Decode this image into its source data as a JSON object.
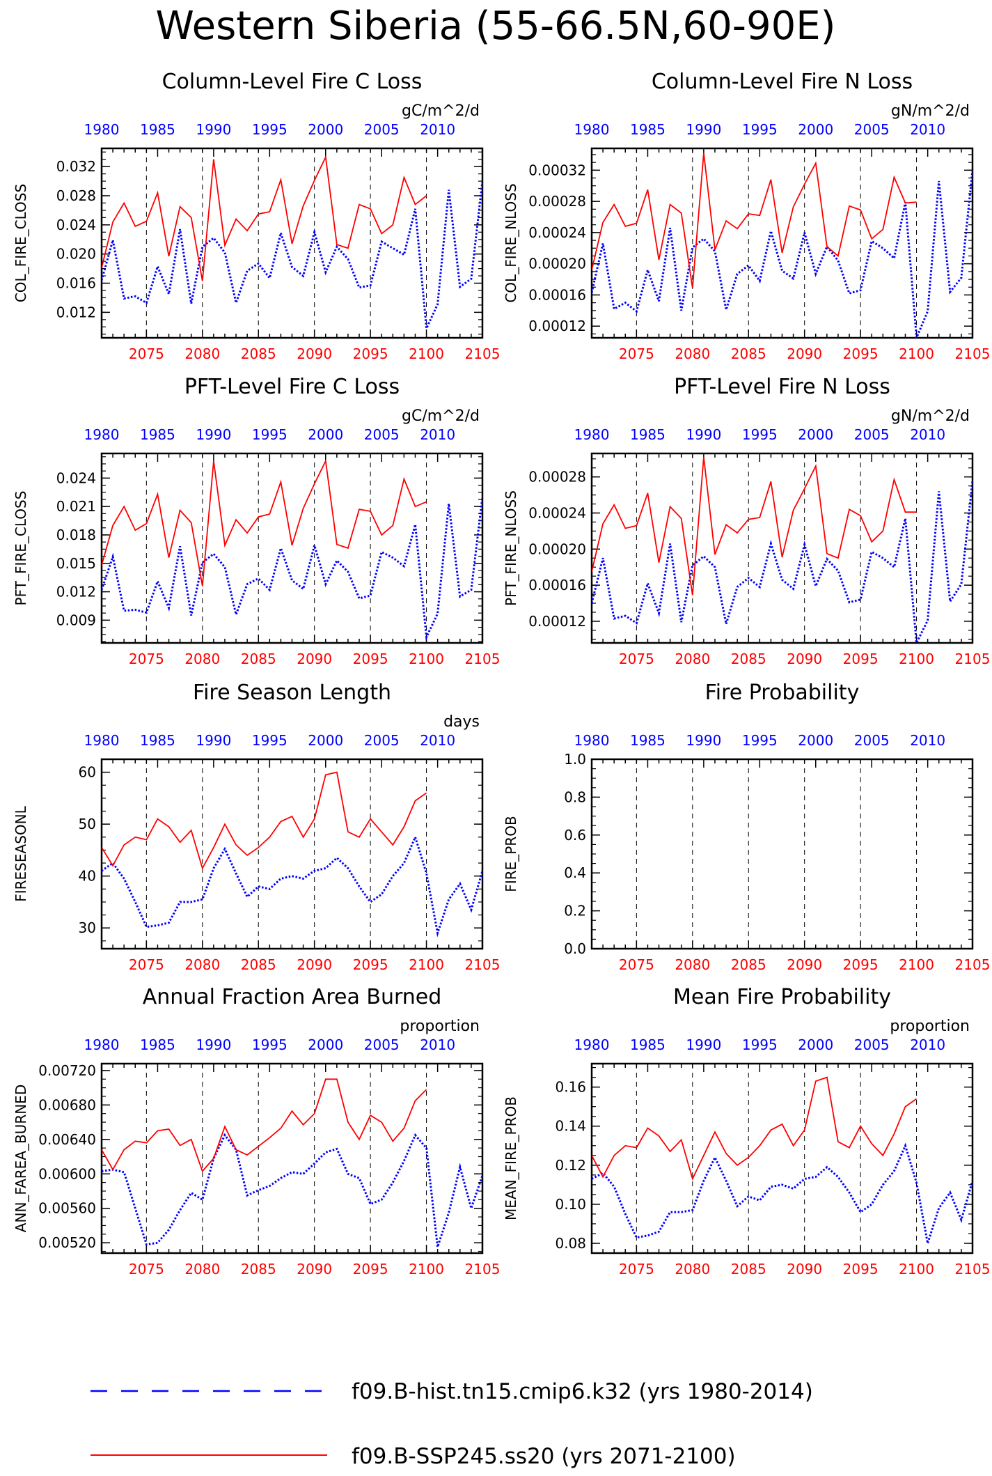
{
  "page_title": "Western Siberia (55-66.5N,60-90E)",
  "colors": {
    "hist": "#0000ff",
    "future": "#ff0000",
    "axis": "#000000"
  },
  "top_axis_labels": [
    "1980",
    "1985",
    "1990",
    "1995",
    "2000",
    "2005",
    "2010"
  ],
  "bottom_axis_labels": [
    "2075",
    "2080",
    "2085",
    "2090",
    "2095",
    "2100",
    "2105"
  ],
  "legend": [
    {
      "style": "dashed",
      "color": "#0000ff",
      "label": "f09.B-hist.tn15.cmip6.k32 (yrs 1980-2014)"
    },
    {
      "style": "solid",
      "color": "#ff0000",
      "label": "f09.B-SSP245.ss20 (yrs 2071-2100)"
    }
  ],
  "chart_data": [
    {
      "type": "line",
      "title": "Column-Level Fire C Loss",
      "units": "gC/m^2/d",
      "ylabel": "COL_FIRE_CLOSS",
      "ylim": [
        0.0085,
        0.0345
      ],
      "yticks": [
        0.012,
        0.016,
        0.02,
        0.024,
        0.028,
        0.032
      ],
      "ytick_labels": [
        "0.012",
        "0.016",
        "0.020",
        "0.024",
        "0.028",
        "0.032"
      ],
      "series": [
        {
          "values": [
            0.0164,
            0.0219,
            0.0139,
            0.0142,
            0.0133,
            0.0183,
            0.0145,
            0.0234,
            0.0132,
            0.021,
            0.0222,
            0.0202,
            0.0133,
            0.0177,
            0.0187,
            0.0167,
            0.0229,
            0.0182,
            0.017,
            0.023,
            0.0175,
            0.021,
            0.0193,
            0.0154,
            0.0157,
            0.0217,
            0.0208,
            0.0199,
            0.0262,
            0.0098,
            0.0131,
            0.0288,
            0.0155,
            0.0166,
            0.03
          ]
        },
        {
          "values": [
            0.0181,
            0.0244,
            0.027,
            0.0238,
            0.0245,
            0.0284,
            0.0197,
            0.0265,
            0.025,
            0.0163,
            0.033,
            0.0212,
            0.0248,
            0.0232,
            0.0255,
            0.0258,
            0.0302,
            0.0214,
            0.0266,
            0.0301,
            0.0333,
            0.0213,
            0.0208,
            0.0268,
            0.0262,
            0.0228,
            0.024,
            0.0305,
            0.0268,
            0.028
          ]
        }
      ]
    },
    {
      "type": "line",
      "title": "Column-Level Fire N Loss",
      "units": "gN/m^2/d",
      "ylabel": "COL_FIRE_NLOSS",
      "ylim": [
        0.000105,
        0.000348
      ],
      "yticks": [
        0.00012,
        0.00016,
        0.0002,
        0.00024,
        0.00028,
        0.00032
      ],
      "ytick_labels": [
        "0.00012",
        "0.00016",
        "0.00020",
        "0.00024",
        "0.00028",
        "0.00032"
      ],
      "series": [
        {
          "values": [
            0.000163,
            0.000226,
            0.000142,
            0.00015,
            0.000139,
            0.000192,
            0.000152,
            0.000246,
            0.00014,
            0.000221,
            0.000232,
            0.000216,
            0.000141,
            0.000187,
            0.000198,
            0.000178,
            0.000242,
            0.000191,
            0.000181,
            0.00024,
            0.000187,
            0.000222,
            0.000204,
            0.000162,
            0.000166,
            0.000229,
            0.00022,
            0.000207,
            0.000279,
            0.000105,
            0.000139,
            0.000306,
            0.000164,
            0.000182,
            0.00032
          ]
        },
        {
          "values": [
            0.000192,
            0.000253,
            0.000276,
            0.000248,
            0.000252,
            0.000295,
            0.000205,
            0.000276,
            0.000265,
            0.000169,
            0.000342,
            0.000218,
            0.000255,
            0.000245,
            0.000264,
            0.000262,
            0.000308,
            0.000214,
            0.000273,
            0.000302,
            0.000329,
            0.000222,
            0.00021,
            0.000274,
            0.000269,
            0.000232,
            0.000244,
            0.000311,
            0.000278,
            0.000279
          ]
        }
      ]
    },
    {
      "type": "line",
      "title": "PFT-Level Fire C Loss",
      "units": "gC/m^2/d",
      "ylabel": "PFT_FIRE_CLOSS",
      "ylim": [
        0.0066,
        0.0266
      ],
      "yticks": [
        0.009,
        0.012,
        0.015,
        0.018,
        0.021,
        0.024
      ],
      "ytick_labels": [
        "0.009",
        "0.012",
        "0.015",
        "0.018",
        "0.021",
        "0.024"
      ],
      "series": [
        {
          "values": [
            0.0122,
            0.0157,
            0.01,
            0.0101,
            0.0098,
            0.0131,
            0.0103,
            0.0168,
            0.0095,
            0.0151,
            0.016,
            0.0146,
            0.0096,
            0.0128,
            0.0134,
            0.0122,
            0.0166,
            0.0132,
            0.0123,
            0.0169,
            0.0128,
            0.0153,
            0.0141,
            0.0113,
            0.0116,
            0.0162,
            0.0156,
            0.0147,
            0.0191,
            0.0072,
            0.0097,
            0.0213,
            0.0115,
            0.0122,
            0.022
          ]
        },
        {
          "values": [
            0.0148,
            0.019,
            0.021,
            0.0185,
            0.0192,
            0.0223,
            0.0156,
            0.0206,
            0.0193,
            0.0126,
            0.0258,
            0.0169,
            0.0196,
            0.0182,
            0.0199,
            0.0202,
            0.0236,
            0.0169,
            0.0208,
            0.0234,
            0.0258,
            0.017,
            0.0166,
            0.0207,
            0.0205,
            0.018,
            0.019,
            0.0239,
            0.021,
            0.0215
          ]
        }
      ]
    },
    {
      "type": "line",
      "title": "PFT-Level Fire N Loss",
      "units": "gN/m^2/d",
      "ylabel": "PFT_FIRE_NLOSS",
      "ylim": [
        9.6e-05,
        0.000306
      ],
      "yticks": [
        0.00012,
        0.00016,
        0.0002,
        0.00024,
        0.00028
      ],
      "ytick_labels": [
        "0.00012",
        "0.00016",
        "0.00020",
        "0.00024",
        "0.00028"
      ],
      "series": [
        {
          "values": [
            0.00014,
            0.00019,
            0.000123,
            0.000126,
            0.000118,
            0.000162,
            0.000129,
            0.000206,
            0.000119,
            0.000182,
            0.000192,
            0.00018,
            0.000117,
            0.000158,
            0.000168,
            0.000158,
            0.000206,
            0.000166,
            0.000156,
            0.000205,
            0.000159,
            0.000189,
            0.000176,
            0.000141,
            0.000144,
            0.000197,
            0.00019,
            0.00018,
            0.000234,
            9.6e-05,
            0.000121,
            0.000264,
            0.000142,
            0.000161,
            0.000276
          ]
        },
        {
          "values": [
            0.000175,
            0.000228,
            0.000249,
            0.000223,
            0.000226,
            0.000262,
            0.000185,
            0.000247,
            0.000234,
            0.000149,
            0.000302,
            0.000194,
            0.000227,
            0.000218,
            0.000233,
            0.000235,
            0.000275,
            0.000191,
            0.000243,
            0.000267,
            0.000292,
            0.000195,
            0.00019,
            0.000244,
            0.000237,
            0.000208,
            0.00022,
            0.000277,
            0.000241,
            0.000241
          ]
        }
      ]
    },
    {
      "type": "line",
      "title": "Fire Season Length",
      "units": "days",
      "ylabel": "FIRESEASONL",
      "ylim": [
        26,
        62.5
      ],
      "yticks": [
        30,
        40,
        50,
        60
      ],
      "ytick_labels": [
        "30",
        "40",
        "50",
        "60"
      ],
      "series": [
        {
          "values": [
            41.0,
            42.5,
            39.5,
            35.0,
            30.2,
            30.5,
            31.0,
            35.0,
            35.0,
            35.5,
            41.5,
            45.2,
            40.5,
            36.0,
            38.0,
            37.5,
            39.5,
            40.0,
            39.5,
            41.0,
            41.5,
            43.5,
            41.5,
            38.0,
            35.0,
            36.5,
            40.0,
            42.5,
            47.5,
            40.5,
            29.0,
            35.5,
            38.5,
            33.5,
            41.0
          ]
        },
        {
          "values": [
            45.5,
            42.0,
            46.0,
            47.5,
            47.0,
            51.0,
            49.5,
            46.5,
            48.8,
            41.5,
            45.5,
            50.0,
            46.0,
            44.0,
            45.5,
            47.5,
            50.5,
            51.5,
            47.5,
            51.0,
            59.5,
            60.0,
            48.5,
            47.5,
            51.0,
            48.5,
            46.0,
            49.5,
            54.5,
            56.0
          ]
        }
      ]
    },
    {
      "type": "line",
      "title": "Fire Probability",
      "units": "",
      "ylabel": "FIRE_PROB",
      "ylim": [
        0,
        1.0
      ],
      "yticks": [
        0.0,
        0.2,
        0.4,
        0.6,
        0.8,
        1.0
      ],
      "ytick_labels": [
        "0.0",
        "0.2",
        "0.4",
        "0.6",
        "0.8",
        "1.0"
      ],
      "series": []
    },
    {
      "type": "line",
      "title": "Annual Fraction Area Burned",
      "units": "proportion",
      "ylabel": "ANN_FAREA_BURNED",
      "ylim": [
        0.00508,
        0.00728
      ],
      "yticks": [
        0.0052,
        0.0056,
        0.006,
        0.0064,
        0.0068,
        0.0072
      ],
      "ytick_labels": [
        "0.00520",
        "0.00560",
        "0.00600",
        "0.00640",
        "0.00680",
        "0.00720"
      ],
      "series": [
        {
          "values": [
            0.00603,
            0.00605,
            0.00602,
            0.0056,
            0.00518,
            0.0052,
            0.00535,
            0.00558,
            0.00578,
            0.0057,
            0.00618,
            0.00645,
            0.00628,
            0.00575,
            0.00581,
            0.00586,
            0.00595,
            0.00602,
            0.006,
            0.00612,
            0.00625,
            0.00629,
            0.006,
            0.00595,
            0.00565,
            0.0057,
            0.0059,
            0.00615,
            0.00645,
            0.0063,
            0.00515,
            0.00555,
            0.00608,
            0.0056,
            0.00598
          ]
        },
        {
          "values": [
            0.00628,
            0.00605,
            0.00628,
            0.00638,
            0.00636,
            0.0065,
            0.00652,
            0.00633,
            0.0064,
            0.00603,
            0.00618,
            0.00655,
            0.00628,
            0.00622,
            0.00632,
            0.00642,
            0.00653,
            0.00673,
            0.00657,
            0.0067,
            0.0071,
            0.0071,
            0.0066,
            0.0064,
            0.00668,
            0.0066,
            0.00638,
            0.00653,
            0.00685,
            0.00698
          ]
        }
      ]
    },
    {
      "type": "line",
      "title": "Mean Fire Probability",
      "units": "proportion",
      "ylabel": "MEAN_FIRE_PROB",
      "ylim": [
        0.075,
        0.172
      ],
      "yticks": [
        0.08,
        0.1,
        0.12,
        0.14,
        0.16
      ],
      "ytick_labels": [
        "0.08",
        "0.10",
        "0.12",
        "0.14",
        "0.16"
      ],
      "series": [
        {
          "values": [
            0.113,
            0.116,
            0.109,
            0.095,
            0.083,
            0.084,
            0.086,
            0.096,
            0.096,
            0.097,
            0.112,
            0.124,
            0.112,
            0.099,
            0.104,
            0.102,
            0.109,
            0.11,
            0.108,
            0.113,
            0.114,
            0.119,
            0.114,
            0.106,
            0.096,
            0.1,
            0.11,
            0.117,
            0.13,
            0.111,
            0.08,
            0.098,
            0.106,
            0.092,
            0.112
          ]
        },
        {
          "values": [
            0.125,
            0.114,
            0.125,
            0.13,
            0.129,
            0.139,
            0.135,
            0.127,
            0.133,
            0.113,
            0.125,
            0.137,
            0.126,
            0.12,
            0.124,
            0.13,
            0.138,
            0.141,
            0.13,
            0.138,
            0.163,
            0.165,
            0.132,
            0.129,
            0.14,
            0.131,
            0.125,
            0.136,
            0.15,
            0.154
          ]
        }
      ]
    }
  ]
}
